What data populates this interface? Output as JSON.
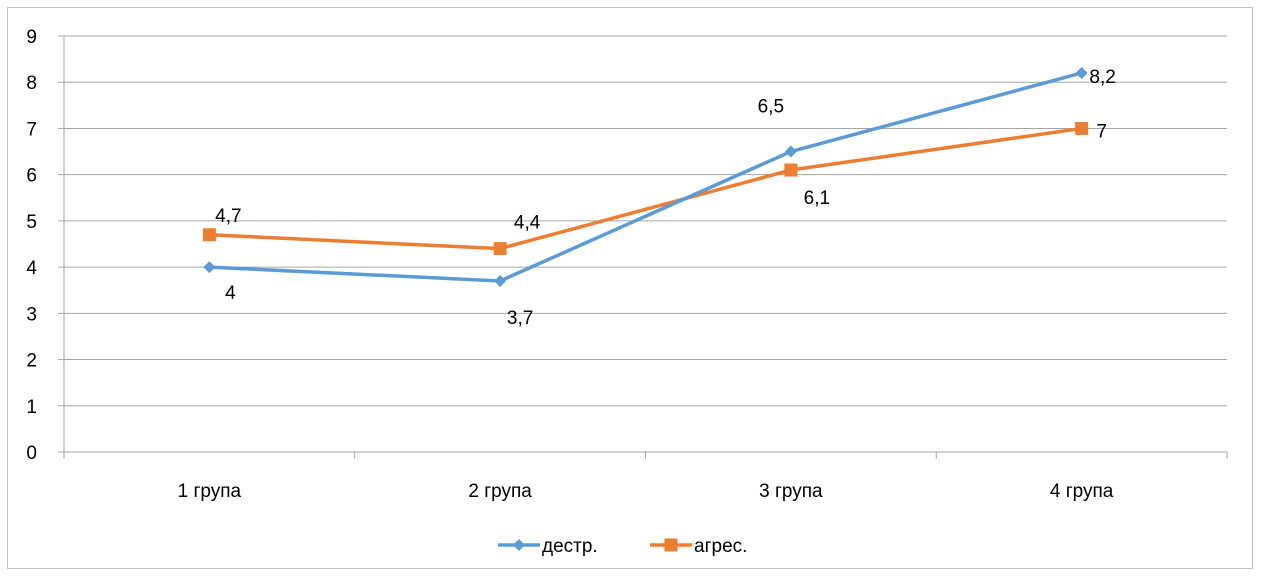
{
  "chart_data": {
    "type": "line",
    "title": "",
    "xlabel": "",
    "ylabel": "",
    "categories": [
      "1 група",
      "2 група",
      "3 група",
      "4 група"
    ],
    "ylim": [
      0,
      9
    ],
    "y_ticks": [
      "0",
      "1",
      "2",
      "3",
      "4",
      "5",
      "6",
      "7",
      "8",
      "9"
    ],
    "grid": true,
    "legend_position": "bottom",
    "series": [
      {
        "name": "дестр.",
        "values": [
          4,
          3.7,
          6.5,
          8.2
        ],
        "labels": [
          "4",
          "3,7",
          "6,5",
          "8,2"
        ],
        "color": "#5b9bd5",
        "marker": "diamond"
      },
      {
        "name": "агрес.",
        "values": [
          4.7,
          4.4,
          6.1,
          7
        ],
        "labels": [
          "4,7",
          "4,4",
          "6,1",
          "7"
        ],
        "color": "#ed7d31",
        "marker": "square"
      }
    ]
  }
}
